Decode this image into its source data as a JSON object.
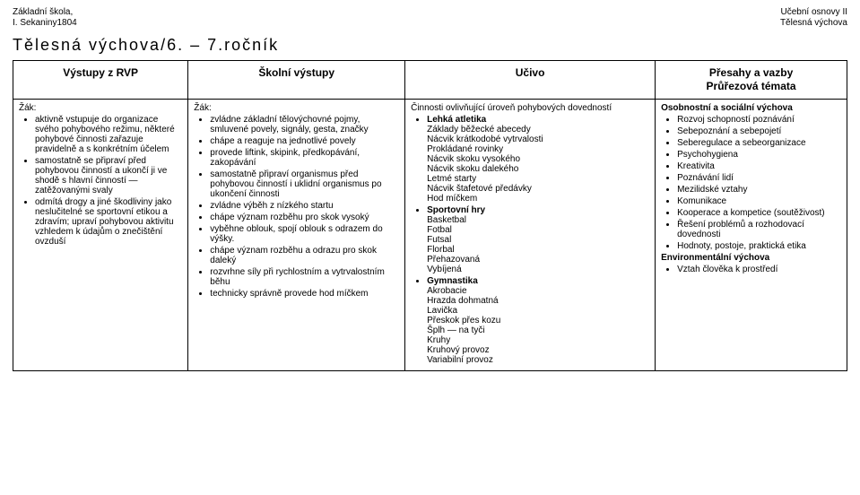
{
  "header": {
    "top_left_1": "Základní škola,",
    "top_left_2": "I. Sekaniny1804",
    "top_right_1": "Učební osnovy II",
    "top_right_2": "Tělesná výchova",
    "page_title": "Tělesná výchova/6. – 7.ročník"
  },
  "table": {
    "columns": [
      "Výstupy z RVP",
      "Školní výstupy",
      "Učivo",
      "Přesahy a vazby\nPrůřezová témata"
    ],
    "col1": {
      "lead": "Žák:",
      "items": [
        "aktivně vstupuje do organizace svého pohybového režimu, některé pohybové činnosti zařazuje pravidelně a s konkrétním účelem",
        "samostatně se připraví před pohybovou činností a ukončí ji ve shodě s hlavní činností —zatěžovanými svaly",
        "odmítá drogy a jiné škodliviny jako neslučitelné se sportovní etikou a zdravím; upraví pohybovou aktivitu vzhledem k údajům o znečištění ovzduší"
      ]
    },
    "col2": {
      "lead": "Žák:",
      "items": [
        "zvládne základní tělovýchovné pojmy, smluvené povely, signály, gesta, značky",
        "chápe a reaguje na jednotlivé povely",
        "provede liftink, skipink, předkopávání, zakopávání",
        "samostatně připraví organismus před pohybovou činností i uklidní organismus po ukončení činnosti",
        "zvládne výběh z nízkého startu",
        "chápe význam rozběhu pro skok vysoký",
        "vyběhne oblouk, spojí oblouk s odrazem do výšky.",
        "chápe význam rozběhu a odrazu pro skok daleký",
        "rozvrhne síly při rychlostním a vytrvalostním běhu",
        "technicky správně provede hod míčkem"
      ]
    },
    "col3": {
      "lead": "Činnosti ovlivňující úroveň pohybových dovedností",
      "groups": [
        {
          "title": "Lehká atletika",
          "items": [
            "Základy běžecké abecedy",
            "Nácvik krátkodobé vytrvalosti",
            "Prokládané rovinky",
            "Nácvik skoku vysokého",
            "Nácvik skoku dalekého",
            "Letmé starty",
            "Nácvik štafetové předávky",
            "Hod míčkem"
          ]
        },
        {
          "title": "Sportovní hry",
          "items": [
            "Basketbal",
            "Fotbal",
            "Futsal",
            "Florbal",
            "Přehazovaná",
            "Vybíjená"
          ]
        },
        {
          "title": "Gymnastika",
          "items": [
            "Akrobacie",
            "Hrazda dohmatná",
            "Lavička",
            "Přeskok přes kozu",
            "Šplh — na tyči",
            "Kruhy",
            "Kruhový provoz",
            "Variabilní provoz"
          ]
        }
      ]
    },
    "col4": {
      "groups": [
        {
          "title": "Osobnostní a sociální výchova",
          "items": [
            "Rozvoj schopností poznávání",
            "Sebepoznání a sebepojetí",
            "Seberegulace a sebeorganizace",
            "Psychohygiena",
            "Kreativita",
            "Poznávání lidí",
            "Mezilidské vztahy",
            "Komunikace",
            "Kooperace a kompetice (soutěživost)",
            "Řešení problémů a rozhodovací dovednosti",
            "Hodnoty, postoje, praktická etika"
          ]
        },
        {
          "title": "Environmentální výchova",
          "items": [
            "Vztah člověka k prostředí"
          ]
        }
      ]
    }
  }
}
